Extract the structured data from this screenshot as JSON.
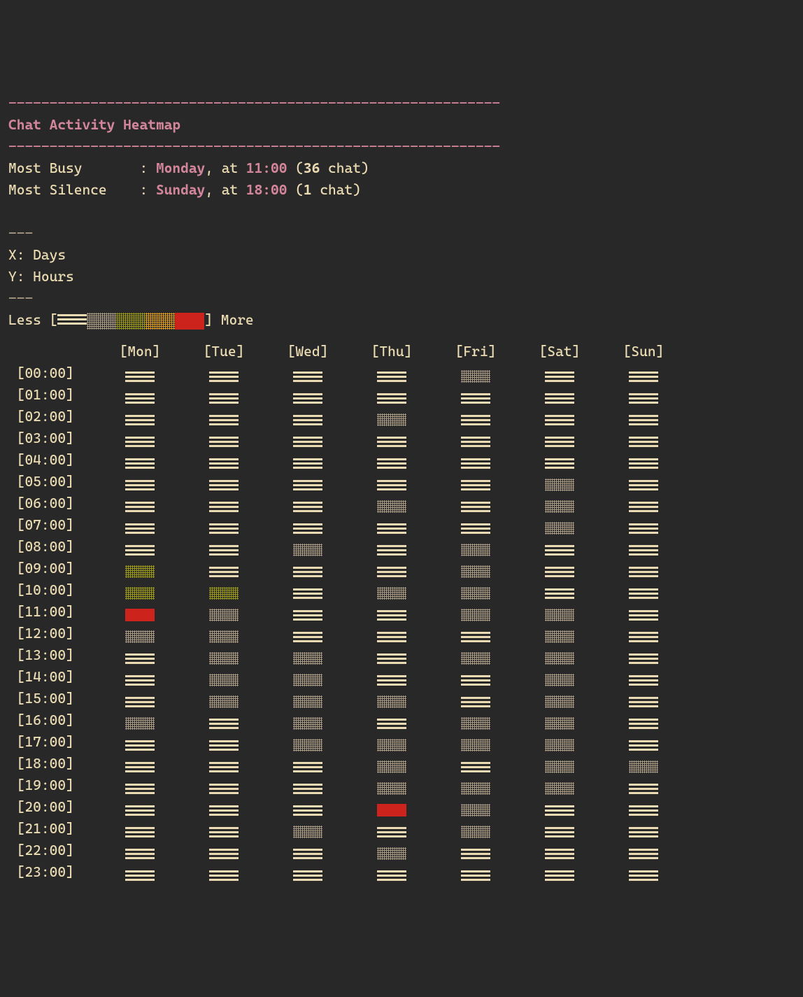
{
  "colors": {
    "bg": "#282828",
    "fg": "#ebdbb2",
    "pink": "#d3869b",
    "dim": "#a89984",
    "red": "#cc241d",
    "orange": "#d79921",
    "olive": "#98971a",
    "cream": "#ebdbb2"
  },
  "dashes": "------------------------------------------------------------",
  "title": "Chat Activity Heatmap",
  "summary": {
    "busy_label": "Most Busy",
    "busy_day": "Monday",
    "busy_at": ", at ",
    "busy_time": "11:00",
    "busy_open": " (",
    "busy_count": "36",
    "busy_close": " chat)",
    "silence_label": "Most Silence",
    "silence_day": "Sunday",
    "silence_time": "18:00",
    "silence_count": "1"
  },
  "axes": {
    "sep": "---",
    "x": "X: Days",
    "y": "Y: Hours"
  },
  "legend": {
    "less": "Less ",
    "more": " More",
    "open": "[",
    "close": "]",
    "steps": [
      {
        "type": "stripes",
        "color": "#ebdbb2",
        "thick": true
      },
      {
        "type": "hatch",
        "color": "#a89984"
      },
      {
        "type": "hatch",
        "color": "#98971a"
      },
      {
        "type": "hatch",
        "color": "#d79921"
      },
      {
        "type": "solid",
        "color": "#cc241d"
      }
    ]
  },
  "days": [
    "Mon",
    "Tue",
    "Wed",
    "Thu",
    "Fri",
    "Sat",
    "Sun"
  ],
  "hours": [
    "00:00",
    "01:00",
    "02:00",
    "03:00",
    "04:00",
    "05:00",
    "06:00",
    "07:00",
    "08:00",
    "09:00",
    "10:00",
    "11:00",
    "12:00",
    "13:00",
    "14:00",
    "15:00",
    "16:00",
    "17:00",
    "18:00",
    "19:00",
    "20:00",
    "21:00",
    "22:00",
    "23:00"
  ],
  "heatmap_types": {
    "s": {
      "type": "stripes",
      "color": "#ebdbb2",
      "thick": true
    },
    "t": {
      "type": "stripes",
      "color": "#ebdbb2",
      "thick": false
    },
    "h": {
      "type": "hatch",
      "color": "#a89984"
    },
    "o": {
      "type": "hatch",
      "color": "#98971a"
    },
    "R": {
      "type": "solid",
      "color": "#cc241d"
    }
  },
  "heatmap": [
    [
      "s",
      "s",
      "s",
      "s",
      "h",
      "s",
      "s"
    ],
    [
      "s",
      "s",
      "s",
      "s",
      "s",
      "s",
      "s"
    ],
    [
      "s",
      "s",
      "s",
      "h",
      "s",
      "s",
      "s"
    ],
    [
      "s",
      "s",
      "s",
      "s",
      "s",
      "s",
      "s"
    ],
    [
      "s",
      "s",
      "s",
      "s",
      "s",
      "s",
      "s"
    ],
    [
      "s",
      "s",
      "s",
      "s",
      "s",
      "h",
      "s"
    ],
    [
      "s",
      "s",
      "s",
      "h",
      "s",
      "h",
      "s"
    ],
    [
      "s",
      "s",
      "s",
      "s",
      "s",
      "h",
      "s"
    ],
    [
      "s",
      "s",
      "h",
      "s",
      "h",
      "s",
      "s"
    ],
    [
      "o",
      "s",
      "s",
      "s",
      "h",
      "s",
      "s"
    ],
    [
      "o",
      "o",
      "s",
      "h",
      "h",
      "s",
      "s"
    ],
    [
      "R",
      "h",
      "s",
      "s",
      "h",
      "h",
      "s"
    ],
    [
      "h",
      "h",
      "s",
      "s",
      "s",
      "h",
      "s"
    ],
    [
      "s",
      "h",
      "h",
      "s",
      "h",
      "h",
      "s"
    ],
    [
      "s",
      "h",
      "h",
      "s",
      "s",
      "h",
      "s"
    ],
    [
      "s",
      "h",
      "h",
      "h",
      "s",
      "h",
      "s"
    ],
    [
      "h",
      "s",
      "h",
      "s",
      "h",
      "h",
      "s"
    ],
    [
      "s",
      "s",
      "h",
      "h",
      "h",
      "h",
      "s"
    ],
    [
      "s",
      "s",
      "s",
      "h",
      "s",
      "h",
      "h"
    ],
    [
      "s",
      "s",
      "s",
      "h",
      "h",
      "h",
      "s"
    ],
    [
      "s",
      "s",
      "s",
      "R",
      "h",
      "s",
      "s"
    ],
    [
      "s",
      "s",
      "h",
      "s",
      "h",
      "s",
      "s"
    ],
    [
      "s",
      "s",
      "s",
      "h",
      "s",
      "s",
      "s"
    ],
    [
      "s",
      "s",
      "s",
      "s",
      "s",
      "s",
      "s"
    ]
  ]
}
